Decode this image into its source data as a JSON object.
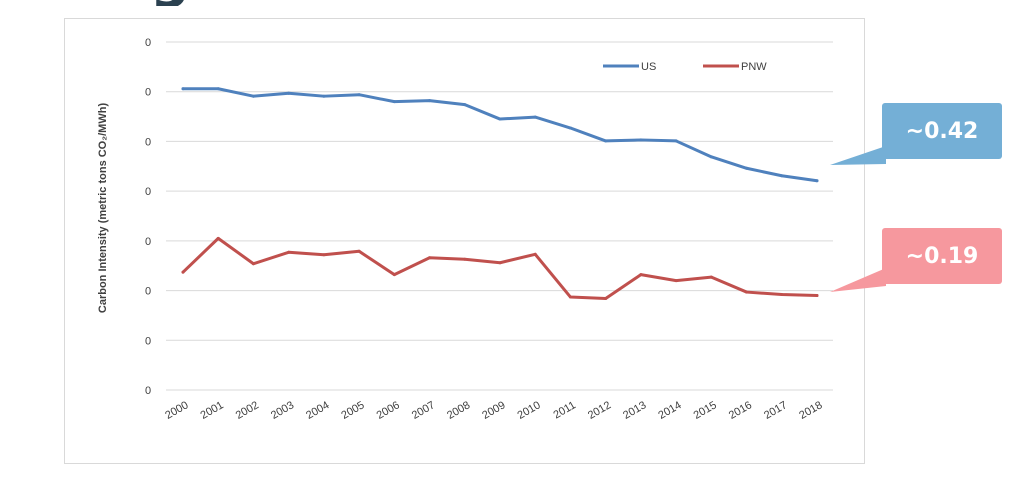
{
  "chart_data": {
    "type": "line",
    "title": "",
    "xlabel": "",
    "ylabel": "Carbon Intensity (metric tons CO₂/MWh)",
    "categories": [
      "2000",
      "2001",
      "2002",
      "2003",
      "2004",
      "2005",
      "2006",
      "2007",
      "2008",
      "2009",
      "2010",
      "2011",
      "2012",
      "2013",
      "2014",
      "2015",
      "2016",
      "2017",
      "2018"
    ],
    "y_tick_labels": [
      "0",
      "0",
      "0",
      "0",
      "0",
      "0",
      "0",
      "0"
    ],
    "ylim": [
      0,
      0.7
    ],
    "grid": true,
    "legend_position": "top-right",
    "series": [
      {
        "name": "US",
        "color": "#4f81bd",
        "values": [
          0.606,
          0.606,
          0.591,
          0.597,
          0.591,
          0.594,
          0.58,
          0.582,
          0.574,
          0.545,
          0.549,
          0.527,
          0.501,
          0.503,
          0.501,
          0.469,
          0.446,
          0.431,
          0.421
        ]
      },
      {
        "name": "PNW",
        "color": "#c0504d",
        "values": [
          0.237,
          0.305,
          0.254,
          0.277,
          0.272,
          0.279,
          0.232,
          0.266,
          0.263,
          0.256,
          0.273,
          0.187,
          0.184,
          0.232,
          0.22,
          0.227,
          0.197,
          0.192,
          0.19
        ]
      }
    ]
  },
  "callouts": {
    "us": {
      "label": "~0.42",
      "color": "#74afd6"
    },
    "pnw": {
      "label": "~0.19",
      "color": "#f6989e"
    }
  },
  "top_fragment_text": "g"
}
